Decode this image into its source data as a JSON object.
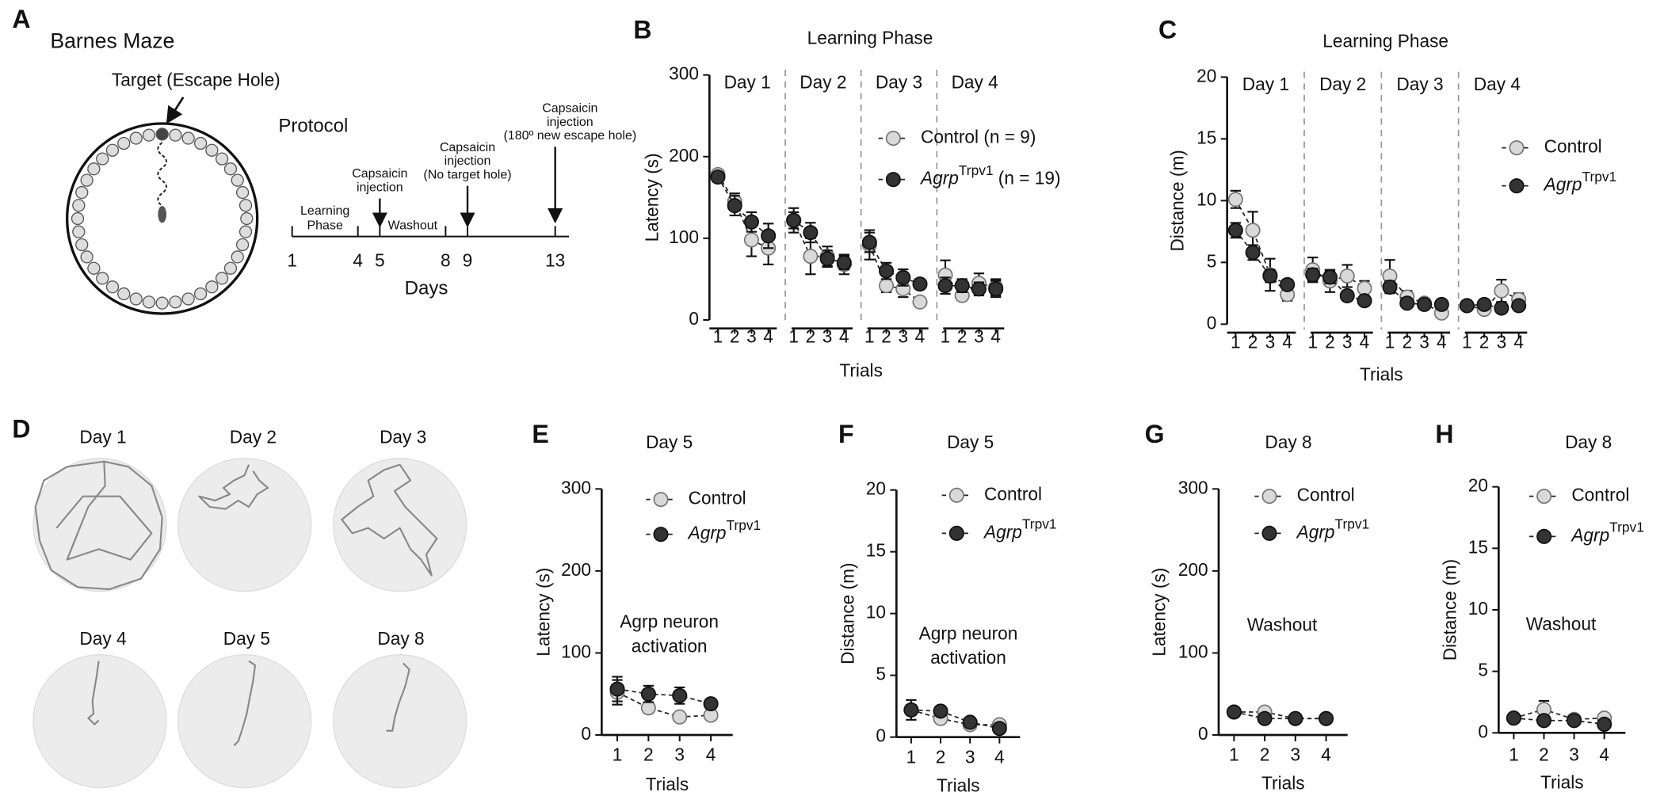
{
  "panel_a": {
    "label": "A",
    "title": "Barnes Maze",
    "target": "Target (Escape Hole)",
    "protocol": "Protocol",
    "timeline": {
      "days": [
        1,
        4,
        5,
        8,
        9,
        13
      ],
      "xlim": [
        1,
        13
      ],
      "axis_label": "Days",
      "phases": [
        [
          "Learning",
          "Phase"
        ],
        [
          "Washout"
        ]
      ],
      "events": [
        [
          "Capsaicin",
          "injection"
        ],
        [
          "Capsaicin",
          "injection",
          "(No target hole)"
        ],
        [
          "Capsaicin",
          "injection",
          "(180º new escape hole)"
        ]
      ]
    }
  },
  "panel_d": {
    "label": "D",
    "days": [
      "Day 1",
      "Day 2",
      "Day 3",
      "Day 4",
      "Day 5",
      "Day 8"
    ]
  },
  "chart_data": [
    {
      "type": "line",
      "label": "B",
      "title": "Learning Phase",
      "ylabel": "Latency (s)",
      "xlabel": "Trials",
      "groups": [
        "Day 1",
        "Day 2",
        "Day 3",
        "Day 4"
      ],
      "categories": [
        "1",
        "2",
        "3",
        "4",
        "1",
        "2",
        "3",
        "4",
        "1",
        "2",
        "3",
        "4",
        "1",
        "2",
        "3",
        "4"
      ],
      "ylim": [
        0,
        300
      ],
      "yticks": [
        0,
        100,
        200,
        300
      ],
      "series": [
        {
          "name": "Control (n = 9)",
          "color": "#d9d9d9",
          "values": [
            178,
            145,
            98,
            88,
            122,
            78,
            78,
            68,
            92,
            42,
            38,
            22,
            55,
            30,
            45,
            40
          ],
          "errors": [
            6,
            10,
            20,
            20,
            15,
            22,
            12,
            12,
            18,
            8,
            10,
            4,
            18,
            6,
            12,
            10
          ]
        },
        {
          "name": "Agrp",
          "name_sup": "Trpv1",
          "name_suffix": " (n = 19)",
          "color": "#333333",
          "values": [
            175,
            140,
            120,
            103,
            122,
            107,
            75,
            70,
            95,
            60,
            52,
            44,
            42,
            42,
            38,
            38
          ],
          "errors": [
            6,
            12,
            12,
            15,
            10,
            12,
            10,
            8,
            12,
            10,
            10,
            6,
            10,
            8,
            8,
            10
          ]
        }
      ]
    },
    {
      "type": "line",
      "label": "C",
      "title": "Learning Phase",
      "ylabel": "Distance (m)",
      "xlabel": "Trials",
      "groups": [
        "Day 1",
        "Day 2",
        "Day 3",
        "Day 4"
      ],
      "categories": [
        "1",
        "2",
        "3",
        "4",
        "1",
        "2",
        "3",
        "4",
        "1",
        "2",
        "3",
        "4",
        "1",
        "2",
        "3",
        "4"
      ],
      "ylim": [
        0,
        20
      ],
      "yticks": [
        0,
        5,
        10,
        15,
        20
      ],
      "series": [
        {
          "name": "Control",
          "color": "#d9d9d9",
          "values": [
            10.1,
            7.6,
            4.0,
            2.4,
            4.4,
            3.5,
            3.9,
            2.9,
            3.9,
            2.2,
            1.7,
            0.9,
            1.5,
            1.2,
            2.7,
            2.0
          ],
          "errors": [
            0.7,
            1.5,
            1.3,
            0.5,
            1.0,
            0.9,
            0.9,
            0.6,
            1.3,
            0.5,
            0.3,
            0.2,
            0.4,
            0.3,
            0.9,
            0.5
          ]
        },
        {
          "name": "Agrp",
          "name_sup": "Trpv1",
          "color": "#333333",
          "values": [
            7.6,
            5.8,
            3.9,
            3.2,
            4.0,
            3.8,
            2.3,
            1.9,
            3.0,
            1.7,
            1.6,
            1.6,
            1.5,
            1.6,
            1.3,
            1.5
          ],
          "errors": [
            0.6,
            0.6,
            0.5,
            0.4,
            0.5,
            0.5,
            0.4,
            0.3,
            0.5,
            0.3,
            0.2,
            0.2,
            0.3,
            0.2,
            0.2,
            0.3
          ]
        }
      ]
    },
    {
      "type": "line",
      "label": "E",
      "title": "Day 5",
      "ylabel": "Latency (s)",
      "xlabel": "Trials",
      "annotation": [
        "Agrp neuron",
        "activation"
      ],
      "x": [
        1,
        2,
        3,
        4
      ],
      "xlim": [
        0.5,
        4.7
      ],
      "xticks": [
        1,
        2,
        3,
        4
      ],
      "ylim": [
        0,
        300
      ],
      "yticks": [
        0,
        100,
        200,
        300
      ],
      "series": [
        {
          "name": "Control",
          "color": "#d9d9d9",
          "values": [
            52,
            33,
            22,
            24
          ],
          "errors": [
            15,
            5,
            3,
            4
          ]
        },
        {
          "name": "Agrp",
          "name_sup": "Trpv1",
          "color": "#333333",
          "values": [
            56,
            50,
            48,
            38
          ],
          "errors": [
            15,
            10,
            10,
            6
          ]
        }
      ]
    },
    {
      "type": "line",
      "label": "F",
      "title": "Day 5",
      "ylabel": "Distance (m)",
      "xlabel": "Trials",
      "annotation": [
        "Agrp neuron",
        "activation"
      ],
      "x": [
        1,
        2,
        3,
        4
      ],
      "xlim": [
        0.5,
        4.7
      ],
      "xticks": [
        1,
        2,
        3,
        4
      ],
      "ylim": [
        0,
        20
      ],
      "yticks": [
        0,
        5,
        10,
        15,
        20
      ],
      "series": [
        {
          "name": "Control",
          "color": "#d9d9d9",
          "values": [
            2.2,
            1.5,
            1.0,
            1.0
          ],
          "errors": [
            0.8,
            0.3,
            0.2,
            0.2
          ]
        },
        {
          "name": "Agrp",
          "name_sup": "Trpv1",
          "color": "#333333",
          "values": [
            2.2,
            2.1,
            1.2,
            0.7
          ],
          "errors": [
            0.4,
            0.3,
            0.2,
            0.1
          ]
        }
      ]
    },
    {
      "type": "line",
      "label": "G",
      "title": "Day 8",
      "ylabel": "Latency (s)",
      "xlabel": "Trials",
      "annotation": [
        "Washout"
      ],
      "x": [
        1,
        2,
        3,
        4
      ],
      "xlim": [
        0.5,
        4.7
      ],
      "xticks": [
        1,
        2,
        3,
        4
      ],
      "ylim": [
        0,
        300
      ],
      "yticks": [
        0,
        100,
        200,
        300
      ],
      "series": [
        {
          "name": "Control",
          "color": "#d9d9d9",
          "values": [
            28,
            28,
            20,
            20
          ],
          "errors": [
            5,
            5,
            3,
            3
          ]
        },
        {
          "name": "Agrp",
          "name_sup": "Trpv1",
          "color": "#333333",
          "values": [
            28,
            20,
            20,
            20
          ],
          "errors": [
            5,
            4,
            3,
            3
          ]
        }
      ]
    },
    {
      "type": "line",
      "label": "H",
      "title": "Day 8",
      "ylabel": "Distance (m)",
      "xlabel": "Trials",
      "annotation": [
        "Washout"
      ],
      "x": [
        1,
        2,
        3,
        4
      ],
      "xlim": [
        0.5,
        4.7
      ],
      "xticks": [
        1,
        2,
        3,
        4
      ],
      "ylim": [
        0,
        20
      ],
      "yticks": [
        0,
        5,
        10,
        15,
        20
      ],
      "series": [
        {
          "name": "Control",
          "color": "#d9d9d9",
          "values": [
            1.2,
            1.9,
            1.1,
            1.2
          ],
          "errors": [
            0.3,
            0.7,
            0.2,
            0.3
          ]
        },
        {
          "name": "Agrp",
          "name_sup": "Trpv1",
          "color": "#333333",
          "values": [
            1.2,
            1.0,
            1.0,
            0.7
          ],
          "errors": [
            0.2,
            0.2,
            0.2,
            0.2
          ]
        }
      ]
    }
  ]
}
